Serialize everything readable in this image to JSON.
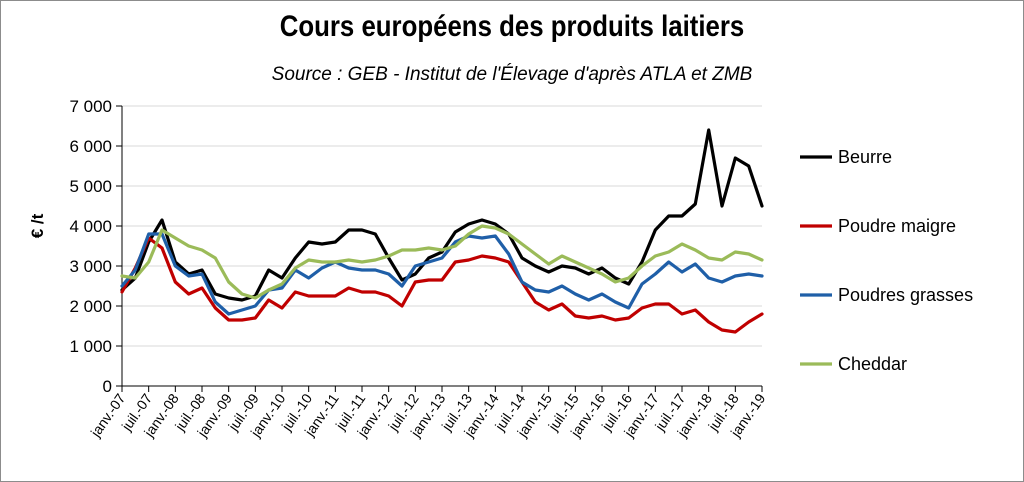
{
  "chart_data": {
    "type": "line",
    "title": "Cours européens des produits laitiers",
    "subtitle": "Source : GEB - Institut de l'Élevage d'après ATLA et ZMB",
    "xlabel": "",
    "ylabel": "€ /t",
    "ylim": [
      0,
      7000
    ],
    "yticks": [
      0,
      1000,
      2000,
      3000,
      4000,
      5000,
      6000,
      7000
    ],
    "ytick_labels": [
      "0",
      "1 000",
      "2 000",
      "3 000",
      "4 000",
      "5 000",
      "6 000",
      "7 000"
    ],
    "xticks": [
      "2007-01",
      "2007-07",
      "2008-01",
      "2008-07",
      "2009-01",
      "2009-07",
      "2010-01",
      "2010-07",
      "2011-01",
      "2011-07",
      "2012-01",
      "2012-07",
      "2013-01",
      "2013-07",
      "2014-01",
      "2014-07",
      "2015-01",
      "2015-07",
      "2016-01",
      "2016-07",
      "2017-01",
      "2017-07",
      "2018-01",
      "2018-07",
      "2019-01"
    ],
    "xtick_labels": [
      "janv.-07",
      "juil.-07",
      "janv.-08",
      "juil.-08",
      "janv.-09",
      "juil.-09",
      "janv.-10",
      "juil.-10",
      "janv.-11",
      "juil.-11",
      "janv.-12",
      "juil.-12",
      "janv.-13",
      "juil.-13",
      "janv.-14",
      "juil.-14",
      "janv.-15",
      "juil.-15",
      "janv.-16",
      "juil.-16",
      "janv.-17",
      "juil.-17",
      "janv.-18",
      "juil.-18",
      "janv.-19"
    ],
    "x": [
      "2007-01",
      "2007-04",
      "2007-07",
      "2007-10",
      "2008-01",
      "2008-04",
      "2008-07",
      "2008-10",
      "2009-01",
      "2009-04",
      "2009-07",
      "2009-10",
      "2010-01",
      "2010-04",
      "2010-07",
      "2010-10",
      "2011-01",
      "2011-04",
      "2011-07",
      "2011-10",
      "2012-01",
      "2012-04",
      "2012-07",
      "2012-10",
      "2013-01",
      "2013-04",
      "2013-07",
      "2013-10",
      "2014-01",
      "2014-04",
      "2014-07",
      "2014-10",
      "2015-01",
      "2015-04",
      "2015-07",
      "2015-10",
      "2016-01",
      "2016-04",
      "2016-07",
      "2016-10",
      "2017-01",
      "2017-04",
      "2017-07",
      "2017-10",
      "2018-01",
      "2018-04",
      "2018-07",
      "2018-10",
      "2019-01"
    ],
    "grid": true,
    "legend_position": "right",
    "series": [
      {
        "name": "Beurre",
        "color": "#000000",
        "values": [
          2400,
          2700,
          3600,
          4150,
          3100,
          2800,
          2900,
          2300,
          2200,
          2150,
          2250,
          2900,
          2700,
          3200,
          3600,
          3550,
          3600,
          3900,
          3900,
          3800,
          3200,
          2650,
          2800,
          3200,
          3350,
          3850,
          4050,
          4150,
          4050,
          3800,
          3200,
          3000,
          2850,
          3000,
          2950,
          2800,
          2950,
          2700,
          2550,
          3100,
          3900,
          4250,
          4250,
          4550,
          6400,
          4500,
          5700,
          5500,
          4500
        ]
      },
      {
        "name": "Poudre maigre",
        "color": "#c00000",
        "values": [
          2350,
          2950,
          3700,
          3450,
          2600,
          2300,
          2450,
          1950,
          1650,
          1650,
          1700,
          2150,
          1950,
          2350,
          2250,
          2250,
          2250,
          2450,
          2350,
          2350,
          2250,
          2000,
          2600,
          2650,
          2650,
          3100,
          3150,
          3250,
          3200,
          3100,
          2600,
          2100,
          1900,
          2050,
          1750,
          1700,
          1750,
          1650,
          1700,
          1950,
          2050,
          2050,
          1800,
          1900,
          1600,
          1400,
          1350,
          1600,
          1800
        ]
      },
      {
        "name": "Poudres grasses",
        "color": "#1f5fa8",
        "values": [
          2500,
          2900,
          3800,
          3800,
          3000,
          2750,
          2800,
          2100,
          1800,
          1900,
          2000,
          2400,
          2450,
          2900,
          2700,
          2950,
          3100,
          2950,
          2900,
          2900,
          2800,
          2500,
          3000,
          3100,
          3200,
          3600,
          3750,
          3700,
          3750,
          3300,
          2600,
          2400,
          2350,
          2500,
          2300,
          2150,
          2300,
          2100,
          1950,
          2550,
          2800,
          3100,
          2850,
          3050,
          2700,
          2600,
          2750,
          2800,
          2750
        ]
      },
      {
        "name": "Cheddar",
        "color": "#9bbb59",
        "values": [
          2750,
          2700,
          3100,
          3900,
          3700,
          3500,
          3400,
          3200,
          2600,
          2300,
          2200,
          2400,
          2550,
          2950,
          3150,
          3100,
          3100,
          3150,
          3100,
          3150,
          3250,
          3400,
          3400,
          3450,
          3400,
          3500,
          3800,
          4000,
          3950,
          3800,
          3550,
          3300,
          3050,
          3250,
          3100,
          2950,
          2800,
          2600,
          2700,
          3000,
          3250,
          3350,
          3550,
          3400,
          3200,
          3150,
          3350,
          3300,
          3150
        ]
      }
    ]
  }
}
